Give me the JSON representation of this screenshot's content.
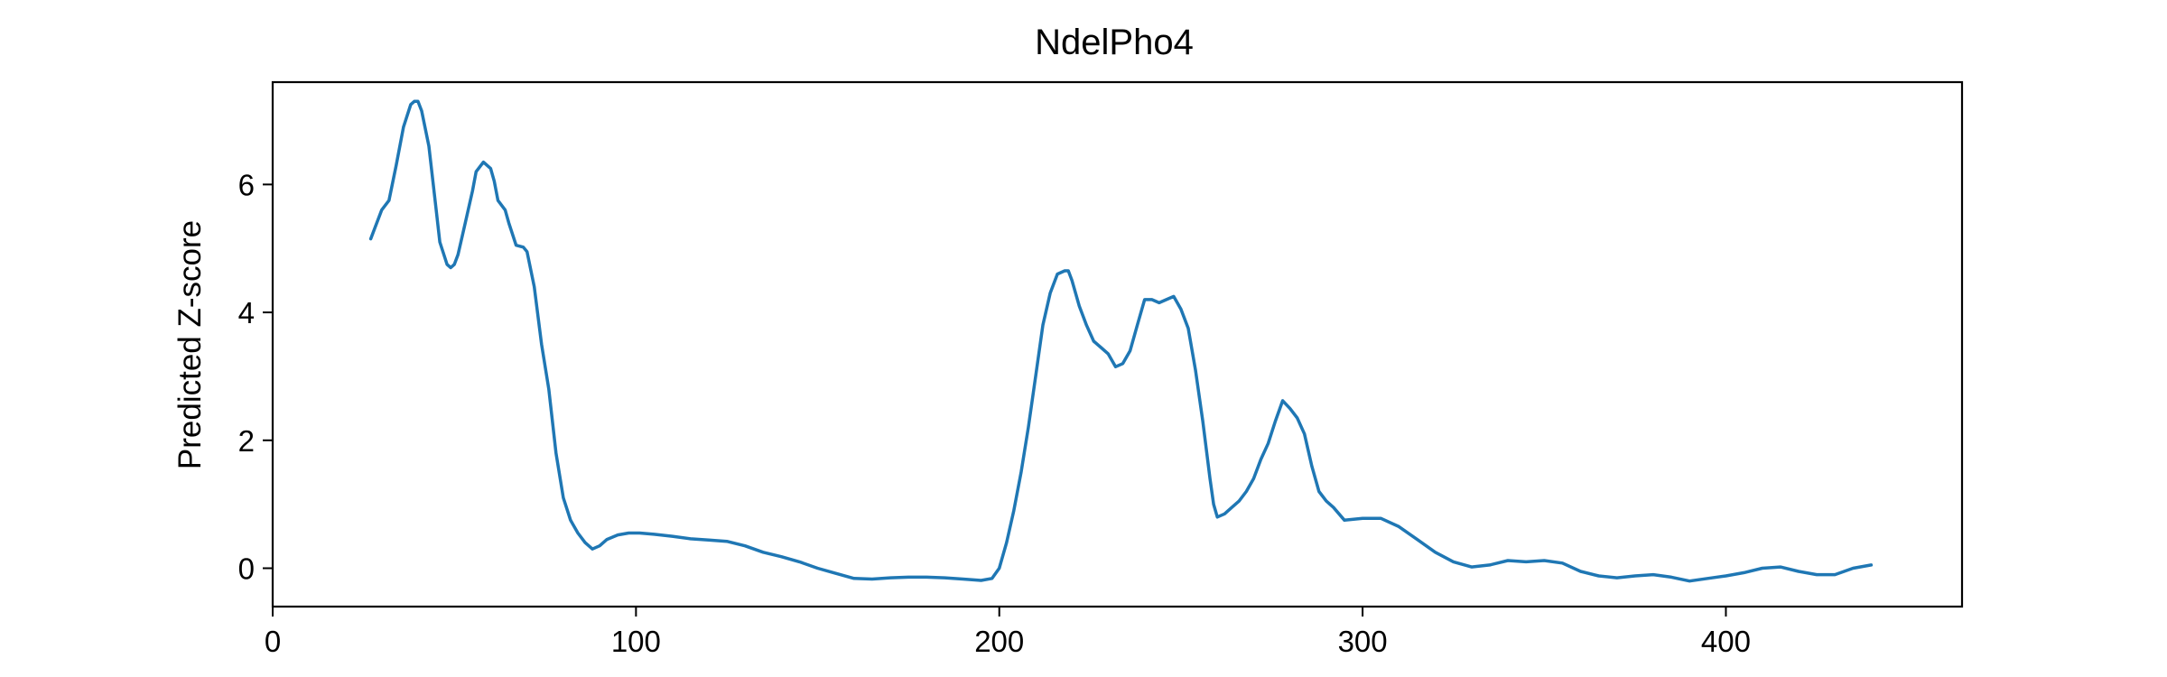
{
  "chart_data": {
    "type": "line",
    "title": "NdelPho4",
    "xlabel": "",
    "ylabel": "Predicted Z-score",
    "xlim": [
      0,
      465
    ],
    "ylim": [
      -0.6,
      7.6
    ],
    "xticks": [
      0,
      100,
      200,
      300,
      400
    ],
    "yticks": [
      0,
      2,
      4,
      6
    ],
    "grid": false,
    "series": [
      {
        "color": "#1f77b4",
        "x": [
          27,
          30,
          32,
          34,
          36,
          38,
          39,
          40,
          41,
          43,
          45,
          46,
          48,
          49,
          50,
          51,
          53,
          55,
          56,
          58,
          60,
          61,
          62,
          64,
          65,
          67,
          69,
          70,
          72,
          74,
          76,
          78,
          80,
          82,
          84,
          86,
          88,
          90,
          92,
          95,
          98,
          101,
          105,
          110,
          115,
          120,
          125,
          130,
          135,
          140,
          145,
          150,
          155,
          160,
          165,
          170,
          175,
          180,
          185,
          190,
          195,
          198,
          200,
          202,
          204,
          206,
          208,
          210,
          212,
          214,
          216,
          218,
          219,
          220,
          222,
          224,
          226,
          228,
          230,
          232,
          234,
          236,
          238,
          240,
          242,
          244,
          246,
          248,
          250,
          252,
          254,
          256,
          258,
          259,
          260,
          262,
          264,
          266,
          268,
          270,
          272,
          274,
          276,
          278,
          280,
          282,
          284,
          286,
          288,
          290,
          292,
          295,
          300,
          305,
          310,
          315,
          320,
          325,
          330,
          335,
          340,
          345,
          350,
          355,
          360,
          365,
          370,
          375,
          380,
          385,
          390,
          395,
          400,
          405,
          410,
          415,
          420,
          425,
          430,
          435,
          440
        ],
        "y": [
          5.15,
          5.6,
          5.75,
          6.3,
          6.9,
          7.25,
          7.3,
          7.3,
          7.15,
          6.6,
          5.6,
          5.1,
          4.75,
          4.7,
          4.75,
          4.9,
          5.4,
          5.9,
          6.2,
          6.35,
          6.25,
          6.05,
          5.75,
          5.6,
          5.4,
          5.05,
          5.02,
          4.95,
          4.4,
          3.5,
          2.8,
          1.8,
          1.1,
          0.75,
          0.55,
          0.4,
          0.3,
          0.35,
          0.45,
          0.52,
          0.55,
          0.55,
          0.53,
          0.5,
          0.46,
          0.44,
          0.42,
          0.35,
          0.25,
          0.18,
          0.1,
          0.0,
          -0.08,
          -0.16,
          -0.17,
          -0.15,
          -0.14,
          -0.14,
          -0.15,
          -0.17,
          -0.19,
          -0.16,
          0.0,
          0.4,
          0.9,
          1.5,
          2.2,
          3.0,
          3.8,
          4.3,
          4.6,
          4.65,
          4.65,
          4.5,
          4.1,
          3.8,
          3.55,
          3.45,
          3.35,
          3.15,
          3.2,
          3.4,
          3.8,
          4.2,
          4.2,
          4.15,
          4.2,
          4.25,
          4.05,
          3.75,
          3.1,
          2.3,
          1.4,
          1.0,
          0.8,
          0.85,
          0.95,
          1.05,
          1.2,
          1.4,
          1.7,
          1.95,
          2.3,
          2.62,
          2.5,
          2.35,
          2.1,
          1.6,
          1.2,
          1.05,
          0.95,
          0.75,
          0.78,
          0.78,
          0.65,
          0.45,
          0.25,
          0.1,
          0.02,
          0.05,
          0.12,
          0.1,
          0.12,
          0.08,
          -0.05,
          -0.12,
          -0.15,
          -0.12,
          -0.1,
          -0.14,
          -0.2,
          -0.16,
          -0.12,
          -0.07,
          0.0,
          0.02,
          -0.05,
          -0.1,
          -0.1,
          0.0,
          0.05
        ]
      }
    ]
  }
}
